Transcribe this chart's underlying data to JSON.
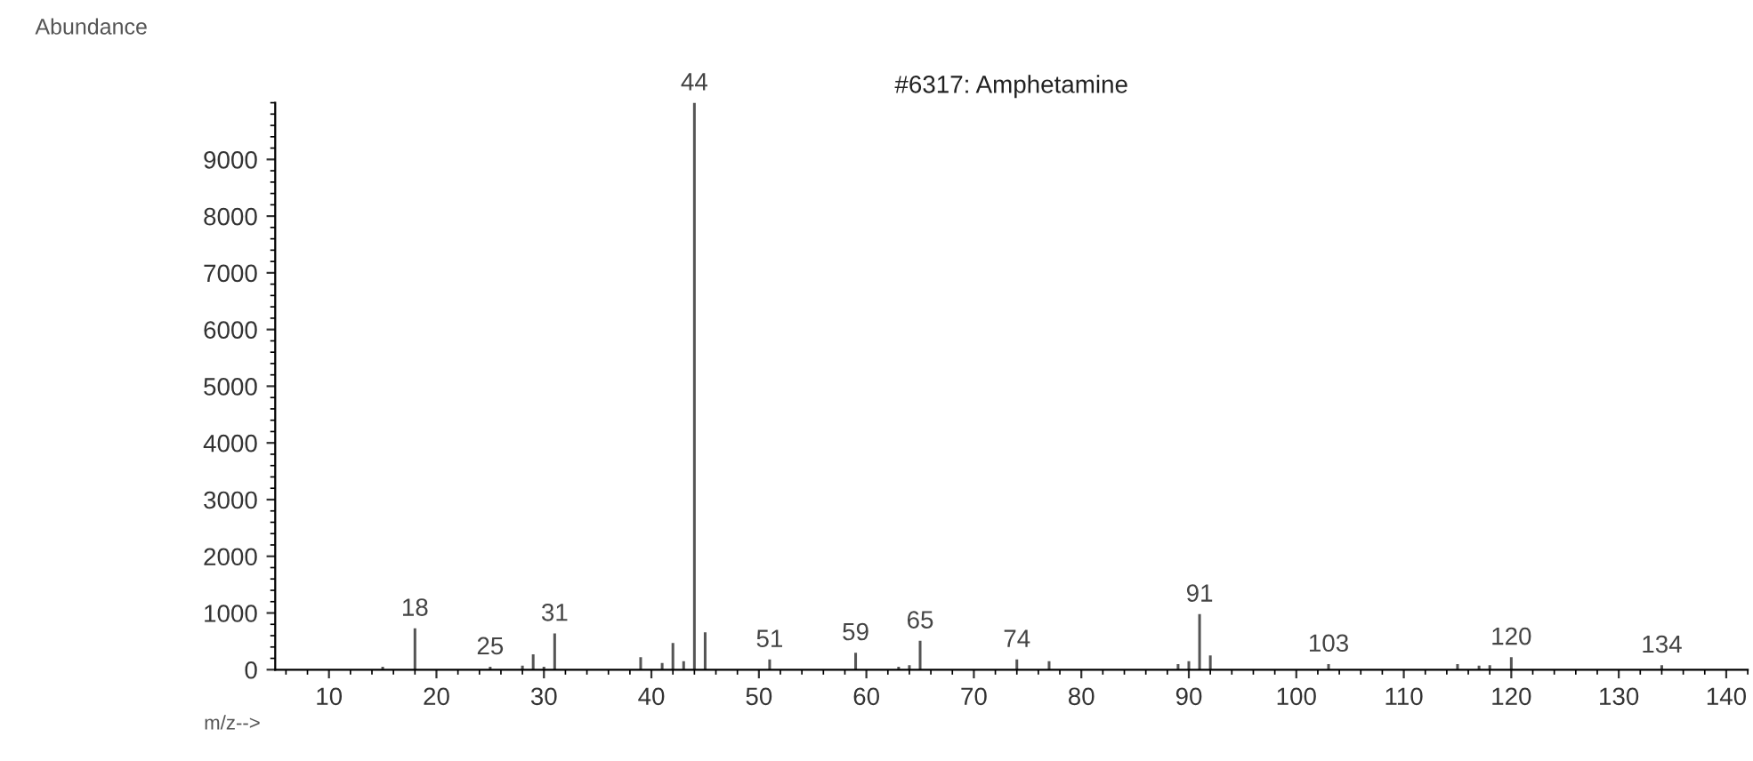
{
  "chart_data": {
    "type": "bar",
    "title": "#6317: Amphetamine",
    "xlabel": "m/z-->",
    "ylabel": "Abundance",
    "color": "#555555",
    "x": [
      15,
      18,
      25,
      28,
      29,
      30,
      31,
      39,
      40,
      41,
      42,
      43,
      44,
      45,
      51,
      59,
      63,
      64,
      65,
      74,
      77,
      89,
      90,
      91,
      92,
      103,
      115,
      117,
      118,
      120,
      134
    ],
    "values": [
      50,
      730,
      50,
      70,
      270,
      50,
      640,
      220,
      null,
      120,
      470,
      150,
      10000,
      660,
      180,
      300,
      50,
      80,
      510,
      180,
      150,
      100,
      150,
      980,
      250,
      100,
      100,
      70,
      80,
      220,
      80
    ],
    "annotations": [
      {
        "text": "18",
        "x": 18,
        "y": 730
      },
      {
        "text": "25",
        "x": 25,
        "y": 50
      },
      {
        "text": "31",
        "x": 31,
        "y": 640
      },
      {
        "text": "44",
        "x": 44,
        "y": 10000
      },
      {
        "text": "51",
        "x": 51,
        "y": 180
      },
      {
        "text": "59",
        "x": 59,
        "y": 300
      },
      {
        "text": "65",
        "x": 65,
        "y": 510
      },
      {
        "text": "74",
        "x": 74,
        "y": 180
      },
      {
        "text": "91",
        "x": 91,
        "y": 980
      },
      {
        "text": "103",
        "x": 103,
        "y": 100
      },
      {
        "text": "120",
        "x": 120,
        "y": 220
      },
      {
        "text": "134",
        "x": 134,
        "y": 80
      }
    ],
    "xlim": [
      5,
      142
    ],
    "ylim": [
      0,
      10000
    ],
    "xticks": [
      10,
      20,
      30,
      40,
      50,
      60,
      70,
      80,
      90,
      100,
      110,
      120,
      130,
      140
    ],
    "yticks": [
      0,
      1000,
      2000,
      3000,
      4000,
      5000,
      6000,
      7000,
      8000,
      9000
    ],
    "grid": false,
    "legend": false
  }
}
